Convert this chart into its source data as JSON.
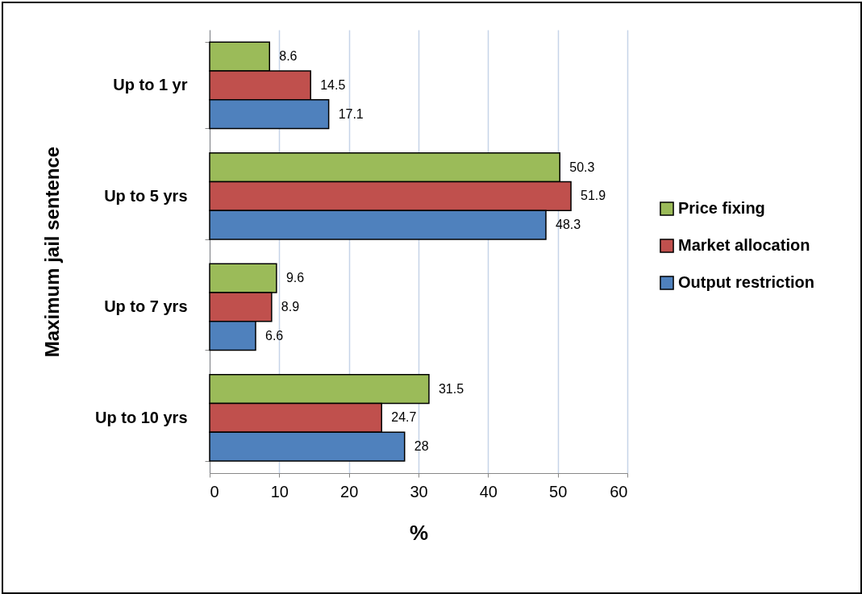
{
  "chart_data": {
    "type": "bar",
    "orientation": "horizontal",
    "xlabel": "%",
    "ylabel": "Maximum jail sentence",
    "categories": [
      "Up to 1 yr",
      "Up to 5 yrs",
      "Up to 7 yrs",
      "Up to 10 yrs"
    ],
    "series": [
      {
        "name": "Price fixing",
        "color": "#9bbb59",
        "values": [
          8.6,
          50.3,
          9.6,
          31.5
        ]
      },
      {
        "name": "Market allocation",
        "color": "#c0504d",
        "values": [
          14.5,
          51.9,
          8.9,
          24.7
        ]
      },
      {
        "name": "Output restriction",
        "color": "#4f81bd",
        "values": [
          17.1,
          48.3,
          6.6,
          28
        ]
      }
    ],
    "xlim": [
      0,
      60
    ],
    "xticks": [
      0,
      10,
      20,
      30,
      40,
      50,
      60
    ],
    "grid": "x",
    "legend": "right",
    "data_labels": true
  }
}
